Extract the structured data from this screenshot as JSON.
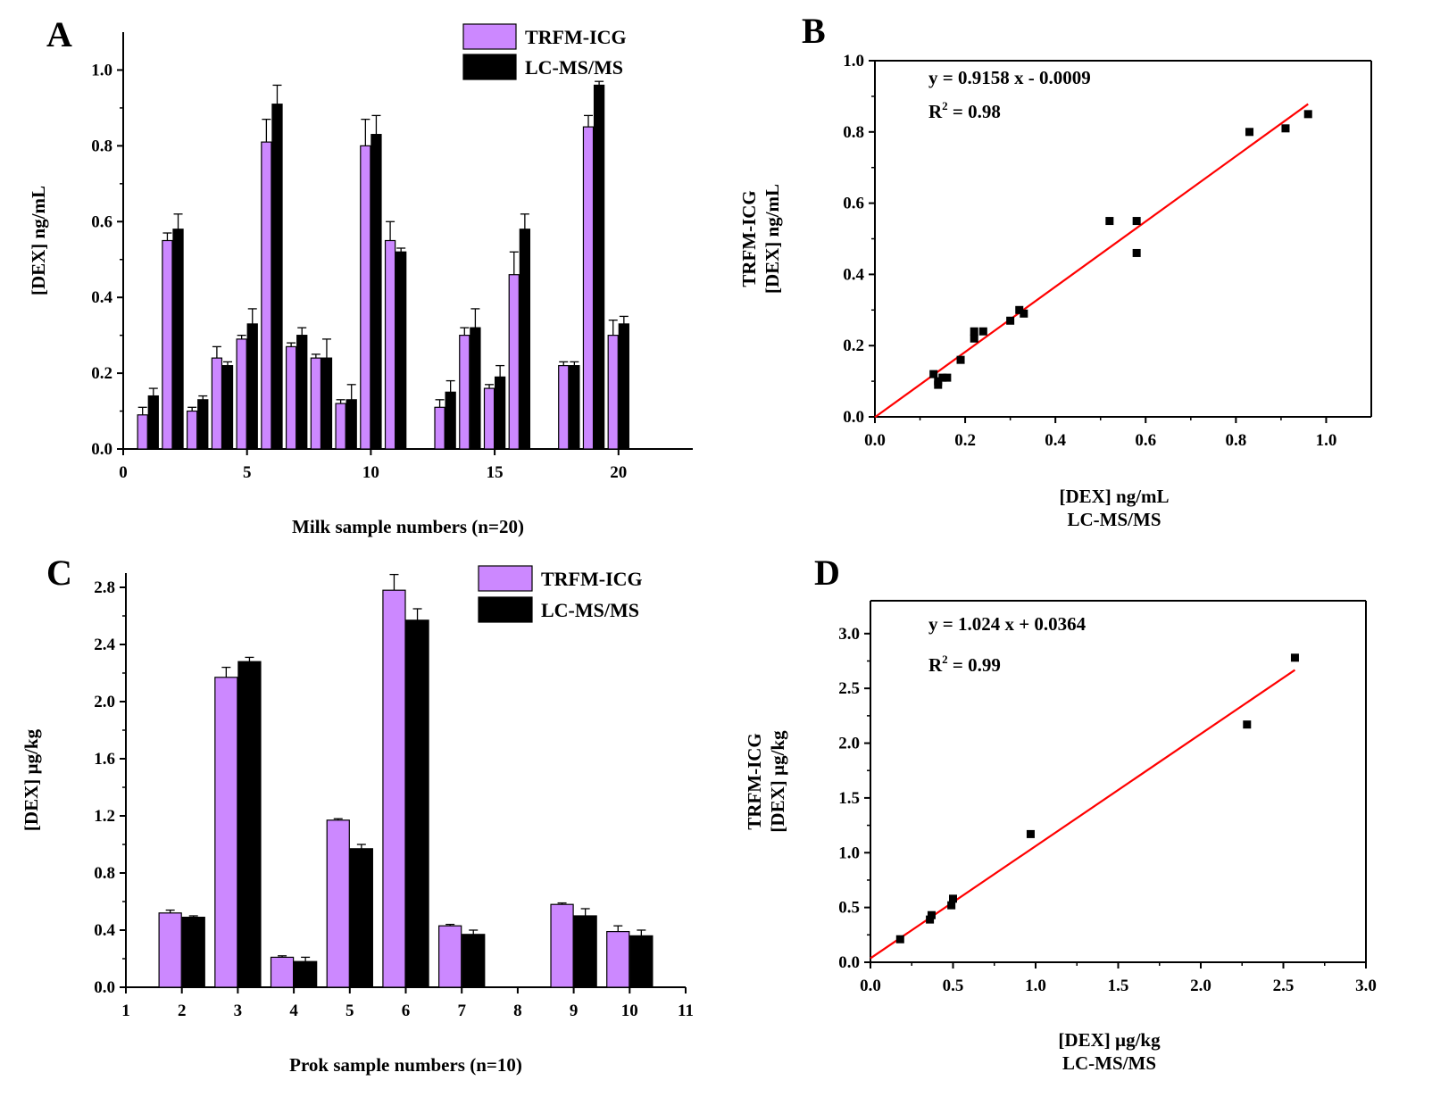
{
  "colors": {
    "trfm": "#cc88ff",
    "lcms": "#000000",
    "fit": "#ff0000"
  },
  "chart_data": [
    {
      "id": "A",
      "type": "bar",
      "panel_label": "A",
      "xlabel": "Milk sample numbers (n=20)",
      "ylabel": "[DEX] ng/mL",
      "xlim": [
        0,
        23
      ],
      "ylim": [
        0,
        1.1
      ],
      "xticks": [
        0,
        5,
        10,
        15,
        20
      ],
      "yticks": [
        "0.0",
        "0.2",
        "0.4",
        "0.6",
        "0.8",
        "1.0"
      ],
      "legend": [
        "TRFM-ICG",
        "LC-MS/MS"
      ],
      "categories": [
        1,
        2,
        3,
        4,
        5,
        6,
        7,
        8,
        9,
        10,
        11,
        12,
        13,
        14,
        15,
        16,
        17,
        18,
        19,
        20
      ],
      "series": [
        {
          "name": "TRFM-ICG",
          "values": [
            0.09,
            0.55,
            0.1,
            0.24,
            0.29,
            0.81,
            0.27,
            0.24,
            0.12,
            0.8,
            0.55,
            null,
            0.11,
            0.3,
            0.16,
            0.46,
            null,
            0.22,
            0.85,
            0.3
          ],
          "errors": [
            0.02,
            0.02,
            0.01,
            0.03,
            0.01,
            0.06,
            0.01,
            0.01,
            0.01,
            0.07,
            0.05,
            null,
            0.02,
            0.02,
            0.01,
            0.06,
            null,
            0.01,
            0.03,
            0.04
          ]
        },
        {
          "name": "LC-MS/MS",
          "values": [
            0.14,
            0.58,
            0.13,
            0.22,
            0.33,
            0.91,
            0.3,
            0.24,
            0.13,
            0.83,
            0.52,
            null,
            0.15,
            0.32,
            0.19,
            0.58,
            null,
            0.22,
            0.96,
            0.33
          ],
          "errors": [
            0.02,
            0.04,
            0.01,
            0.01,
            0.04,
            0.05,
            0.02,
            0.05,
            0.04,
            0.05,
            0.01,
            null,
            0.03,
            0.05,
            0.03,
            0.04,
            null,
            0.01,
            0.01,
            0.02
          ]
        }
      ]
    },
    {
      "id": "B",
      "type": "scatter",
      "panel_label": "B",
      "xlabel": [
        "[DEX] ng/mL",
        "LC-MS/MS"
      ],
      "ylabel": [
        "TRFM-ICG",
        "[DEX] ng/mL"
      ],
      "xlim": [
        0,
        1.1
      ],
      "ylim": [
        0,
        1.0
      ],
      "xticks": [
        "0.0",
        "0.2",
        "0.4",
        "0.6",
        "0.8",
        "1.0"
      ],
      "yticks": [
        "0.0",
        "0.2",
        "0.4",
        "0.6",
        "0.8",
        "1.0"
      ],
      "equation": "y = 0.9158 x - 0.0009",
      "r2_label": "R",
      "r2_sup": "2",
      "r2_value": " = 0.98",
      "fit": {
        "slope": 0.9158,
        "intercept": -0.0009,
        "x_range": [
          0,
          0.96
        ]
      },
      "points": [
        [
          0.13,
          0.12
        ],
        [
          0.14,
          0.09
        ],
        [
          0.14,
          0.1
        ],
        [
          0.15,
          0.11
        ],
        [
          0.16,
          0.11
        ],
        [
          0.19,
          0.16
        ],
        [
          0.22,
          0.24
        ],
        [
          0.22,
          0.22
        ],
        [
          0.24,
          0.24
        ],
        [
          0.3,
          0.27
        ],
        [
          0.32,
          0.3
        ],
        [
          0.33,
          0.29
        ],
        [
          0.52,
          0.55
        ],
        [
          0.58,
          0.55
        ],
        [
          0.58,
          0.46
        ],
        [
          0.83,
          0.8
        ],
        [
          0.91,
          0.81
        ],
        [
          0.96,
          0.85
        ]
      ]
    },
    {
      "id": "C",
      "type": "bar",
      "panel_label": "C",
      "xlabel": "Prok sample numbers (n=10)",
      "ylabel": "[DEX] µg/kg",
      "xlim": [
        1,
        11
      ],
      "ylim": [
        0,
        2.9
      ],
      "xticks": [
        1,
        2,
        3,
        4,
        5,
        6,
        7,
        8,
        9,
        10,
        11
      ],
      "yticks": [
        "0.0",
        "0.4",
        "0.8",
        "1.2",
        "1.6",
        "2.0",
        "2.4",
        "2.8"
      ],
      "legend": [
        "TRFM-ICG",
        "LC-MS/MS"
      ],
      "categories": [
        2,
        3,
        4,
        5,
        6,
        7,
        8,
        9,
        10
      ],
      "series": [
        {
          "name": "TRFM-ICG",
          "values": [
            0.52,
            2.17,
            0.21,
            1.17,
            2.78,
            0.43,
            null,
            0.58,
            0.39
          ],
          "errors": [
            0.02,
            0.07,
            0.01,
            0.01,
            0.11,
            0.01,
            null,
            0.01,
            0.04
          ]
        },
        {
          "name": "LC-MS/MS",
          "values": [
            0.49,
            2.28,
            0.18,
            0.97,
            2.57,
            0.37,
            null,
            0.5,
            0.36
          ],
          "errors": [
            0.01,
            0.03,
            0.03,
            0.03,
            0.08,
            0.03,
            null,
            0.05,
            0.04
          ]
        }
      ]
    },
    {
      "id": "D",
      "type": "scatter",
      "panel_label": "D",
      "xlabel": [
        "[DEX] µg/kg",
        "LC-MS/MS"
      ],
      "ylabel": [
        "TRFM-ICG",
        "[DEX] µg/kg"
      ],
      "xlim": [
        0,
        3.0
      ],
      "ylim": [
        0,
        3.3
      ],
      "xticks": [
        "0.0",
        "0.5",
        "1.0",
        "1.5",
        "2.0",
        "2.5",
        "3.0"
      ],
      "yticks": [
        "0.0",
        "0.5",
        "1.0",
        "1.5",
        "2.0",
        "2.5",
        "3.0"
      ],
      "equation": "y = 1.024 x + 0.0364",
      "r2_label": "R",
      "r2_sup": "2",
      "r2_value": " = 0.99",
      "fit": {
        "slope": 1.024,
        "intercept": 0.0364,
        "x_range": [
          0,
          2.57
        ]
      },
      "points": [
        [
          0.18,
          0.21
        ],
        [
          0.36,
          0.39
        ],
        [
          0.37,
          0.43
        ],
        [
          0.49,
          0.52
        ],
        [
          0.5,
          0.58
        ],
        [
          0.97,
          1.17
        ],
        [
          2.28,
          2.17
        ],
        [
          2.57,
          2.78
        ]
      ]
    }
  ]
}
